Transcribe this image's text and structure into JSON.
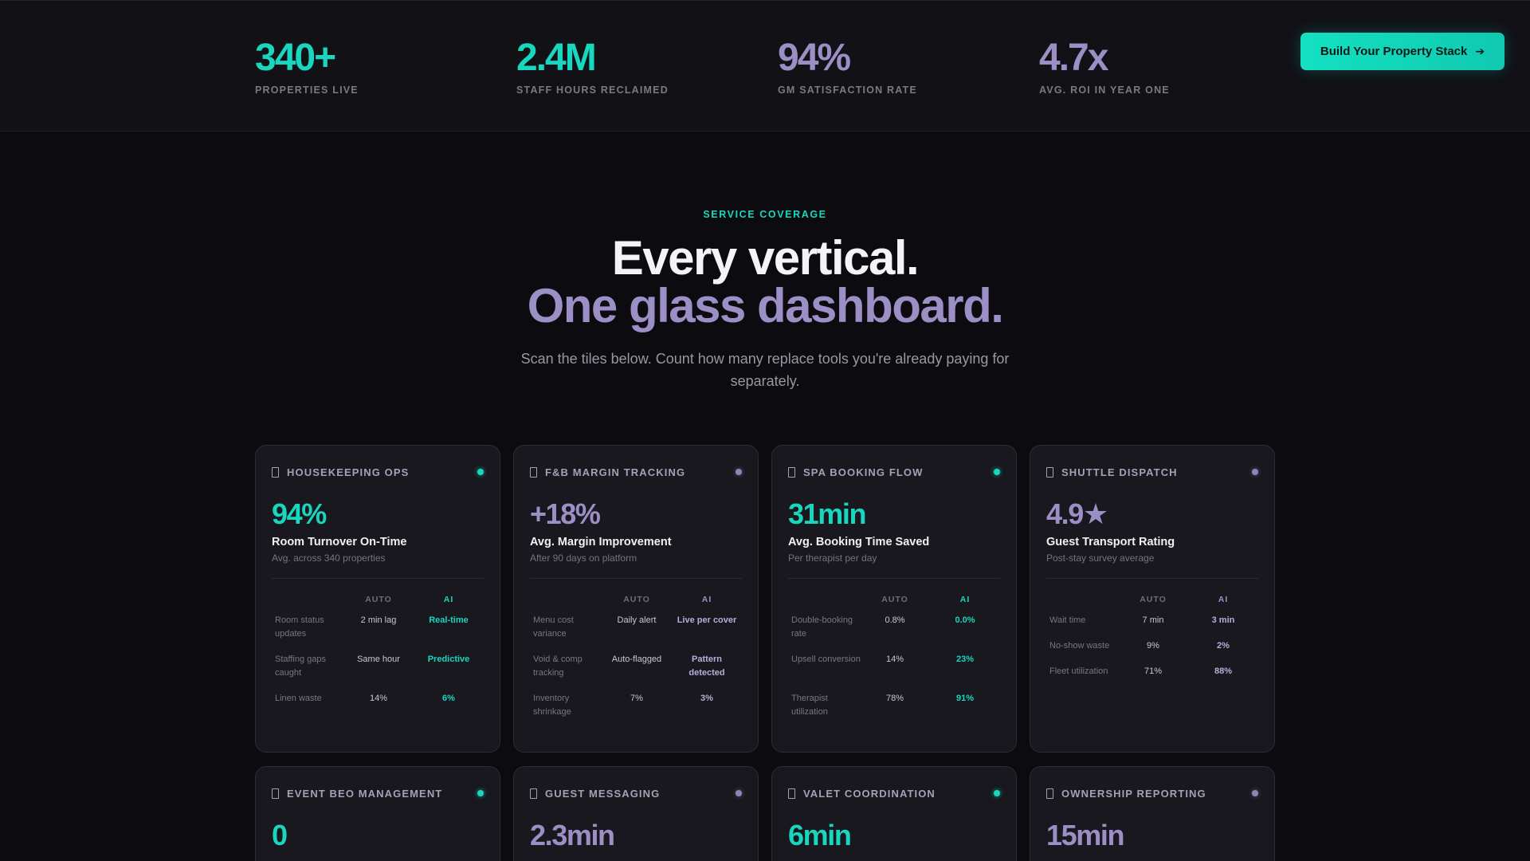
{
  "stats": [
    {
      "value": "340+",
      "label": "PROPERTIES LIVE",
      "color": "teal"
    },
    {
      "value": "2.4M",
      "label": "STAFF HOURS RECLAIMED",
      "color": "teal"
    },
    {
      "value": "94%",
      "label": "GM SATISFACTION RATE",
      "color": "lav"
    },
    {
      "value": "4.7x",
      "label": "AVG. ROI IN YEAR ONE",
      "color": "lav"
    }
  ],
  "cta": {
    "label": "Build Your Property Stack",
    "icon": "arrow-right-icon"
  },
  "hero": {
    "eyebrow": "SERVICE COVERAGE",
    "line1": "Every vertical.",
    "line2": "One glass dashboard.",
    "subtitle": "Scan the tiles below. Count how many replace tools you're already paying for separately."
  },
  "table_headers": {
    "auto": "AUTO",
    "ai": "AI"
  },
  "colors": {
    "teal": "#19d6be",
    "lavender": "#9c8fc6",
    "background": "#0c0c10",
    "card": "#18181e"
  },
  "cards": [
    {
      "title": "HOUSEKEEPING OPS",
      "accent": "teal",
      "metric": "94%",
      "metric_label": "Room Turnover On-Time",
      "metric_sub": "Avg. across 340 properties",
      "rows": [
        {
          "label": "Room status updates",
          "auto": "2 min lag",
          "ai": "Real-time"
        },
        {
          "label": "Staffing gaps caught",
          "auto": "Same hour",
          "ai": "Predictive"
        },
        {
          "label": "Linen waste",
          "auto": "14%",
          "ai": "6%"
        }
      ]
    },
    {
      "title": "F&B MARGIN TRACKING",
      "accent": "lav",
      "metric": "+18%",
      "metric_label": "Avg. Margin Improvement",
      "metric_sub": "After 90 days on platform",
      "rows": [
        {
          "label": "Menu cost variance",
          "auto": "Daily alert",
          "ai": "Live per cover"
        },
        {
          "label": "Void & comp tracking",
          "auto": "Auto-flagged",
          "ai": "Pattern detected"
        },
        {
          "label": "Inventory shrinkage",
          "auto": "7%",
          "ai": "3%"
        }
      ]
    },
    {
      "title": "SPA BOOKING FLOW",
      "accent": "teal",
      "metric": "31min",
      "metric_label": "Avg. Booking Time Saved",
      "metric_sub": "Per therapist per day",
      "rows": [
        {
          "label": "Double-booking rate",
          "auto": "0.8%",
          "ai": "0.0%"
        },
        {
          "label": "Upsell conversion",
          "auto": "14%",
          "ai": "23%"
        },
        {
          "label": "Therapist utilization",
          "auto": "78%",
          "ai": "91%"
        }
      ]
    },
    {
      "title": "SHUTTLE DISPATCH",
      "accent": "lav",
      "metric": "4.9★",
      "metric_label": "Guest Transport Rating",
      "metric_sub": "Post-stay survey average",
      "rows": [
        {
          "label": "Wait time",
          "auto": "7 min",
          "ai": "3 min"
        },
        {
          "label": "No-show waste",
          "auto": "9%",
          "ai": "2%"
        },
        {
          "label": "Fleet utilization",
          "auto": "71%",
          "ai": "88%"
        }
      ]
    },
    {
      "title": "EVENT BEO MANAGEMENT",
      "accent": "teal",
      "metric": "0"
    },
    {
      "title": "GUEST MESSAGING",
      "accent": "lav",
      "metric": "2.3min"
    },
    {
      "title": "VALET COORDINATION",
      "accent": "teal",
      "metric": "6min"
    },
    {
      "title": "OWNERSHIP REPORTING",
      "accent": "lav",
      "metric": "15min"
    }
  ]
}
